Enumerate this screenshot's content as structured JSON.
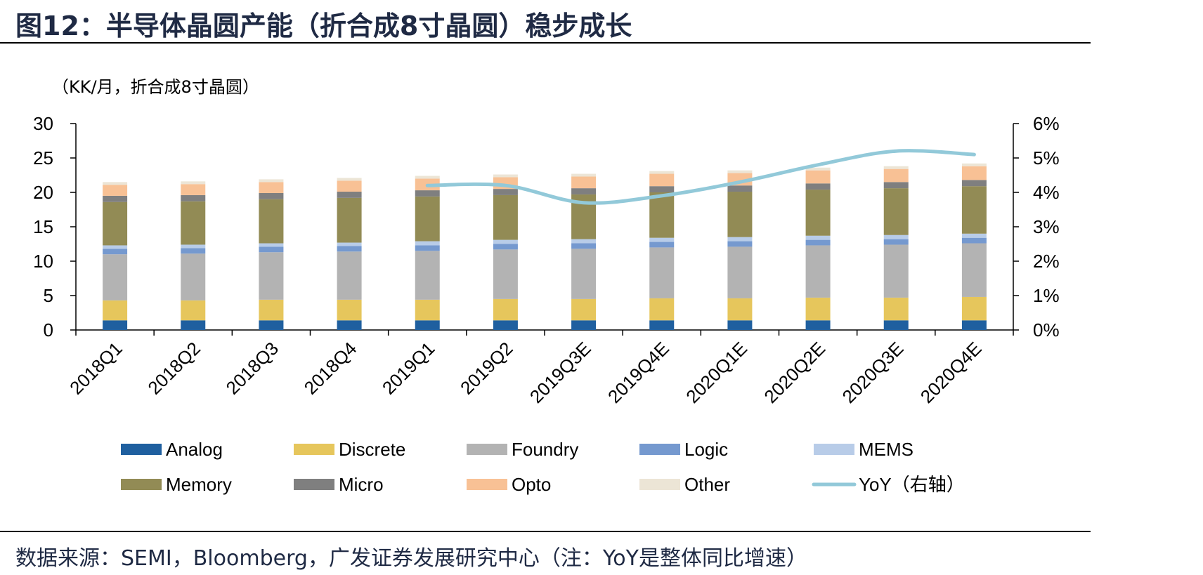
{
  "figure_title": "图12：半导体晶圆产能（折合成8寸晶圆）稳步成长",
  "unit_label": "（KK/月，折合成8寸晶圆）",
  "source_text": "数据来源：SEMI，Bloomberg，广发证券发展研究中心（注：YoY是整体同比增速）",
  "chart_data": {
    "type": "bar",
    "stacked": true,
    "categories": [
      "2018Q1",
      "2018Q2",
      "2018Q3",
      "2018Q4",
      "2019Q1",
      "2019Q2",
      "2019Q3E",
      "2019Q4E",
      "2020Q1E",
      "2020Q2E",
      "2020Q3E",
      "2020Q4E"
    ],
    "ylim": [
      0,
      30
    ],
    "yticks": [
      0,
      5,
      10,
      15,
      20,
      25,
      30
    ],
    "y2lim": [
      0,
      0.06
    ],
    "y2ticks": [
      "0%",
      "1%",
      "2%",
      "3%",
      "4%",
      "5%",
      "6%"
    ],
    "grid": false,
    "legend_position": "bottom",
    "series": [
      {
        "name": "Analog",
        "color": "#1f5f9f",
        "values": [
          1.4,
          1.4,
          1.4,
          1.4,
          1.4,
          1.4,
          1.4,
          1.4,
          1.4,
          1.4,
          1.4,
          1.4
        ]
      },
      {
        "name": "Discrete",
        "color": "#e6c65c",
        "values": [
          2.9,
          2.9,
          3.0,
          3.0,
          3.0,
          3.1,
          3.1,
          3.2,
          3.2,
          3.3,
          3.3,
          3.4
        ]
      },
      {
        "name": "Foundry",
        "color": "#b3b3b3",
        "values": [
          6.7,
          6.8,
          6.9,
          7.0,
          7.1,
          7.2,
          7.3,
          7.4,
          7.5,
          7.6,
          7.7,
          7.8
        ]
      },
      {
        "name": "Logic",
        "color": "#7599cf",
        "values": [
          0.8,
          0.8,
          0.8,
          0.8,
          0.8,
          0.8,
          0.8,
          0.8,
          0.8,
          0.8,
          0.8,
          0.8
        ]
      },
      {
        "name": "MEMS",
        "color": "#b8cce8",
        "values": [
          0.5,
          0.5,
          0.5,
          0.5,
          0.6,
          0.6,
          0.6,
          0.6,
          0.6,
          0.6,
          0.6,
          0.6
        ]
      },
      {
        "name": "Memory",
        "color": "#928b55",
        "values": [
          6.3,
          6.3,
          6.4,
          6.5,
          6.5,
          6.5,
          6.5,
          6.6,
          6.6,
          6.7,
          6.8,
          6.9
        ]
      },
      {
        "name": "Micro",
        "color": "#7f7f7f",
        "values": [
          0.9,
          0.9,
          0.9,
          0.9,
          0.9,
          0.9,
          0.9,
          0.9,
          0.9,
          0.9,
          0.9,
          0.9
        ]
      },
      {
        "name": "Opto",
        "color": "#f8c195",
        "values": [
          1.6,
          1.6,
          1.6,
          1.6,
          1.7,
          1.7,
          1.7,
          1.8,
          1.8,
          1.9,
          1.9,
          2.0
        ]
      },
      {
        "name": "Other",
        "color": "#ece5d6",
        "values": [
          0.4,
          0.4,
          0.4,
          0.4,
          0.4,
          0.4,
          0.4,
          0.4,
          0.4,
          0.4,
          0.4,
          0.4
        ]
      }
    ],
    "line_series": {
      "name": "YoY（右轴）",
      "color": "#92c9d9",
      "axis": "right",
      "values": [
        null,
        null,
        null,
        null,
        0.042,
        0.042,
        0.037,
        0.039,
        0.043,
        0.048,
        0.052,
        0.051
      ]
    }
  }
}
